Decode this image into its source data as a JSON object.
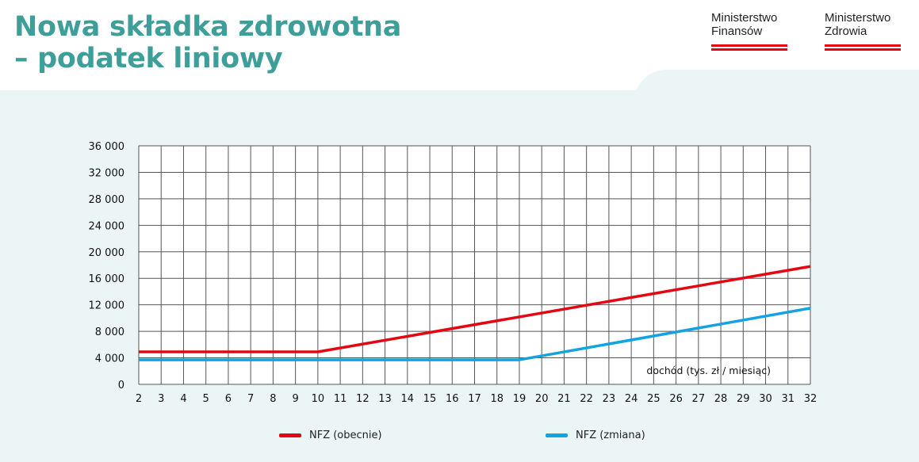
{
  "header": {
    "title_line1": "Nowa składka zdrowotna",
    "title_line2": "– podatek liniowy"
  },
  "logos": [
    {
      "name": "Ministerstwo\nFinansów",
      "bar_color": "#e30613"
    },
    {
      "name": "Ministerstwo\nZdrowia",
      "bar_color": "#e30613"
    }
  ],
  "colors": {
    "title": "#3d9e9a",
    "panel": "#ebf5f6",
    "grid": "#555555",
    "series_1": "#e30613",
    "series_2": "#12a3e0"
  },
  "chart_data": {
    "type": "line",
    "title": "",
    "xlabel": "dochód (tys. zł / miesiąc)",
    "ylabel": "",
    "x": [
      2,
      3,
      4,
      5,
      6,
      7,
      8,
      9,
      10,
      11,
      12,
      13,
      14,
      15,
      16,
      17,
      18,
      19,
      20,
      21,
      22,
      23,
      24,
      25,
      26,
      27,
      28,
      29,
      30,
      31,
      32
    ],
    "x_ticks": [
      "2",
      "3",
      "4",
      "5",
      "6",
      "7",
      "8",
      "9",
      "10",
      "11",
      "12",
      "13",
      "14",
      "15",
      "16",
      "17",
      "18",
      "19",
      "20",
      "21",
      "22",
      "23",
      "24",
      "25",
      "26",
      "27",
      "28",
      "29",
      "30",
      "31",
      "32"
    ],
    "y_ticks": [
      "0",
      "4 000",
      "8 000",
      "12 000",
      "16 000",
      "20 000",
      "24 000",
      "28 000",
      "32 000",
      "36 000"
    ],
    "y_tick_values": [
      0,
      4000,
      8000,
      12000,
      16000,
      20000,
      24000,
      28000,
      32000,
      36000
    ],
    "xlim": [
      2,
      32
    ],
    "ylim": [
      0,
      36000
    ],
    "grid": true,
    "series": [
      {
        "name": "NFZ (obecnie)",
        "color": "#e30613",
        "points": [
          [
            2,
            4900
          ],
          [
            10,
            4900
          ],
          [
            32,
            17800
          ]
        ]
      },
      {
        "name": "NFZ (zmiana)",
        "color": "#12a3e0",
        "points": [
          [
            2,
            3700
          ],
          [
            19,
            3700
          ],
          [
            32,
            11500
          ]
        ]
      }
    ],
    "legend": "bottom"
  }
}
